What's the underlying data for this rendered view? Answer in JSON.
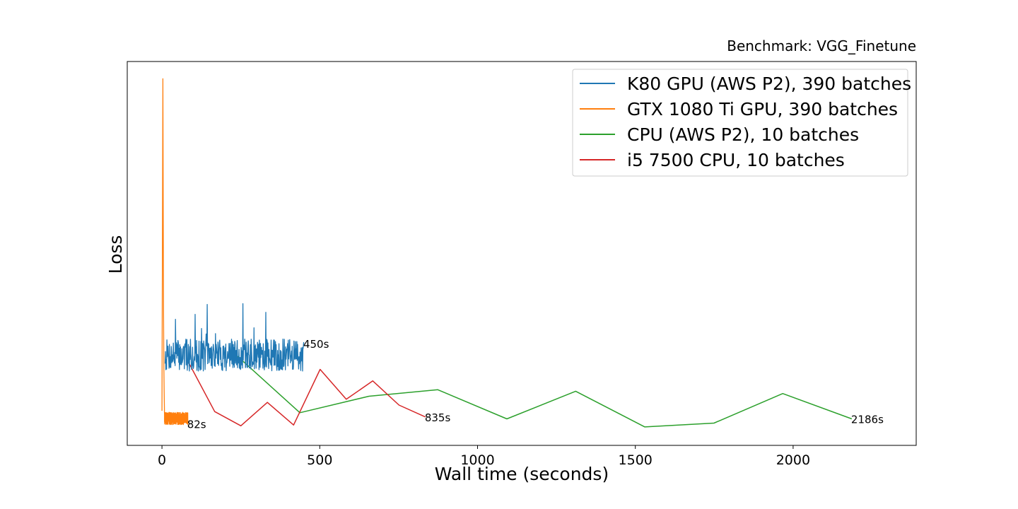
{
  "chart_data": {
    "type": "line",
    "title": "Benchmark: VGG_Finetune",
    "xlabel": "Wall time (seconds)",
    "ylabel": "Loss",
    "xlim": [
      -110,
      2390
    ],
    "ylim": [
      0,
      100
    ],
    "xticks": [
      0,
      500,
      1000,
      1500,
      2000
    ],
    "xtick_labels": [
      "0",
      "500",
      "1000",
      "1500",
      "2000"
    ],
    "yticks_shown": false,
    "grid": false,
    "legend_position": "top-right",
    "series": [
      {
        "name": "K80 GPU (AWS P2), 390 batches",
        "color": "#1f77b4",
        "end_time": 450,
        "end_label": "450s",
        "style": "noisy",
        "noise_seed": 7,
        "start_x": 10,
        "x": [
          10,
          450
        ],
        "baseline": [
          23.5,
          23.5
        ],
        "amplitude": 4.2,
        "spike_max": 37.0,
        "points": 390
      },
      {
        "name": "GTX 1080 Ti GPU, 390 batches",
        "color": "#ff7f0e",
        "end_time": 82,
        "end_label": "82s",
        "style": "noisy",
        "noise_seed": 13,
        "spike": {
          "x": [
            0,
            3,
            4,
            5,
            6,
            7,
            8
          ],
          "y": [
            9,
            95.5,
            60,
            36,
            20,
            14,
            8
          ]
        },
        "x": [
          8,
          82
        ],
        "baseline": [
          7.0,
          7.0
        ],
        "amplitude": 1.6,
        "points": 390
      },
      {
        "name": "CPU (AWS P2), 10 batches",
        "color": "#2ca02c",
        "end_time": 2186,
        "end_label": "2186s",
        "style": "line",
        "x": [
          218,
          437,
          656,
          874,
          1093,
          1311,
          1530,
          1749,
          1967,
          2186
        ],
        "y": [
          24.8,
          8.5,
          12.8,
          14.5,
          6.9,
          14.1,
          4.8,
          5.8,
          13.5,
          6.9
        ]
      },
      {
        "name": "i5 7500 CPU, 10 batches",
        "color": "#d62728",
        "end_time": 835,
        "end_label": "835s",
        "style": "line",
        "x": [
          83,
          167,
          250,
          334,
          417,
          501,
          584,
          668,
          751,
          835
        ],
        "y": [
          21.8,
          8.8,
          5.1,
          11.2,
          5.3,
          19.8,
          12.0,
          16.8,
          10.5,
          7.4
        ]
      }
    ]
  }
}
